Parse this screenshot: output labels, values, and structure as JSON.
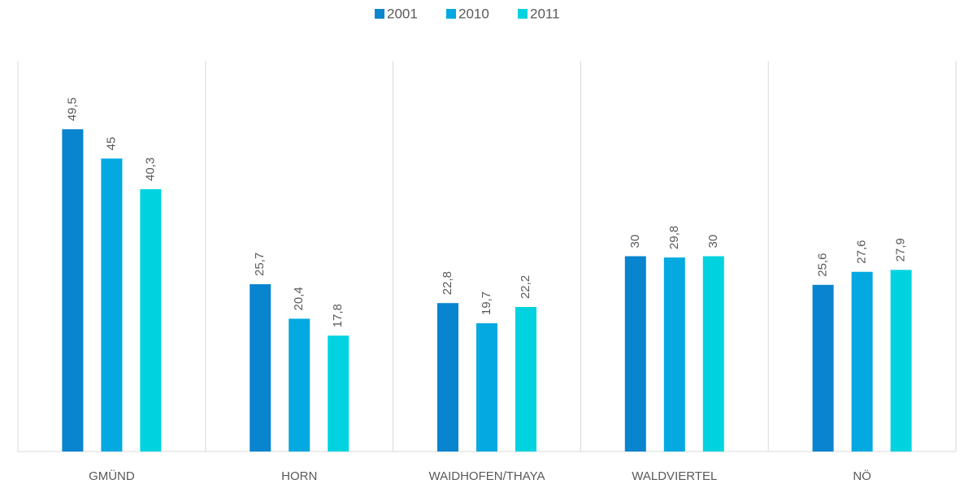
{
  "chart_data": {
    "type": "bar",
    "categories": [
      "GMÜND",
      "HORN",
      "WAIDHOFEN/THAYA",
      "WALDVIERTEL",
      "NÖ"
    ],
    "series": [
      {
        "name": "2001",
        "color": "#0984cf",
        "values": [
          49.5,
          25.7,
          22.8,
          30,
          25.6
        ],
        "value_labels": [
          "49,5",
          "25,7",
          "22,8",
          "30",
          "25,6"
        ]
      },
      {
        "name": "2010",
        "color": "#03a9e0",
        "values": [
          45,
          20.4,
          19.7,
          29.8,
          27.6
        ],
        "value_labels": [
          "45",
          "20,4",
          "19,7",
          "29,8",
          "27,6"
        ]
      },
      {
        "name": "2011",
        "color": "#00d3df",
        "values": [
          40.3,
          17.8,
          22.2,
          30,
          27.9
        ],
        "value_labels": [
          "40,3",
          "17,8",
          "22,2",
          "30",
          "27,9"
        ]
      }
    ],
    "ylim": [
      0,
      60
    ],
    "legend": "top"
  }
}
